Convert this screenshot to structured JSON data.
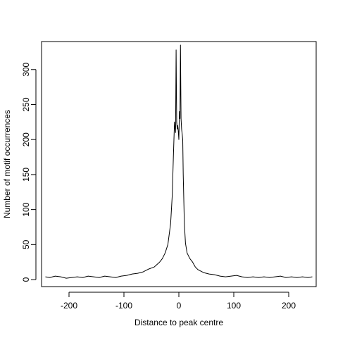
{
  "chart_data": {
    "type": "line",
    "title": "",
    "xlabel": "Distance to peak centre",
    "ylabel": "Number of motif occurrences",
    "xlim": [
      -250,
      250
    ],
    "ylim": [
      -10,
      340
    ],
    "x_ticks": [
      -200,
      -100,
      0,
      100,
      200
    ],
    "x_tick_labels": [
      "-200",
      "-100",
      "0",
      "100",
      "200"
    ],
    "y_ticks": [
      0,
      50,
      100,
      150,
      200,
      250,
      300
    ],
    "y_tick_labels": [
      "0",
      "50",
      "100",
      "150",
      "200",
      "250",
      "300"
    ],
    "grid": false,
    "series": [
      {
        "x": [
          -243,
          -235,
          -225,
          -215,
          -205,
          -195,
          -185,
          -175,
          -165,
          -155,
          -145,
          -135,
          -125,
          -115,
          -105,
          -95,
          -85,
          -75,
          -65,
          -55,
          -45,
          -35,
          -30,
          -25,
          -20,
          -15,
          -12,
          -10,
          -8,
          -6,
          -5,
          -4,
          -3,
          -2,
          -1,
          0,
          1,
          2,
          3,
          4,
          5,
          6,
          7,
          8,
          10,
          12,
          15,
          20,
          25,
          30,
          35,
          45,
          55,
          65,
          75,
          85,
          95,
          105,
          115,
          125,
          135,
          145,
          155,
          165,
          175,
          185,
          195,
          205,
          215,
          225,
          235,
          243
        ],
        "y": [
          4,
          3,
          5,
          4,
          2,
          3,
          4,
          3,
          5,
          4,
          3,
          5,
          4,
          3,
          5,
          6,
          8,
          9,
          11,
          15,
          18,
          25,
          30,
          38,
          50,
          80,
          120,
          175,
          225,
          210,
          328,
          225,
          215,
          220,
          212,
          200,
          240,
          230,
          335,
          230,
          215,
          208,
          200,
          150,
          80,
          52,
          38,
          30,
          25,
          18,
          14,
          10,
          8,
          7,
          5,
          4,
          5,
          6,
          4,
          3,
          4,
          3,
          4,
          3,
          4,
          5,
          3,
          4,
          3,
          4,
          3,
          4
        ]
      }
    ]
  }
}
